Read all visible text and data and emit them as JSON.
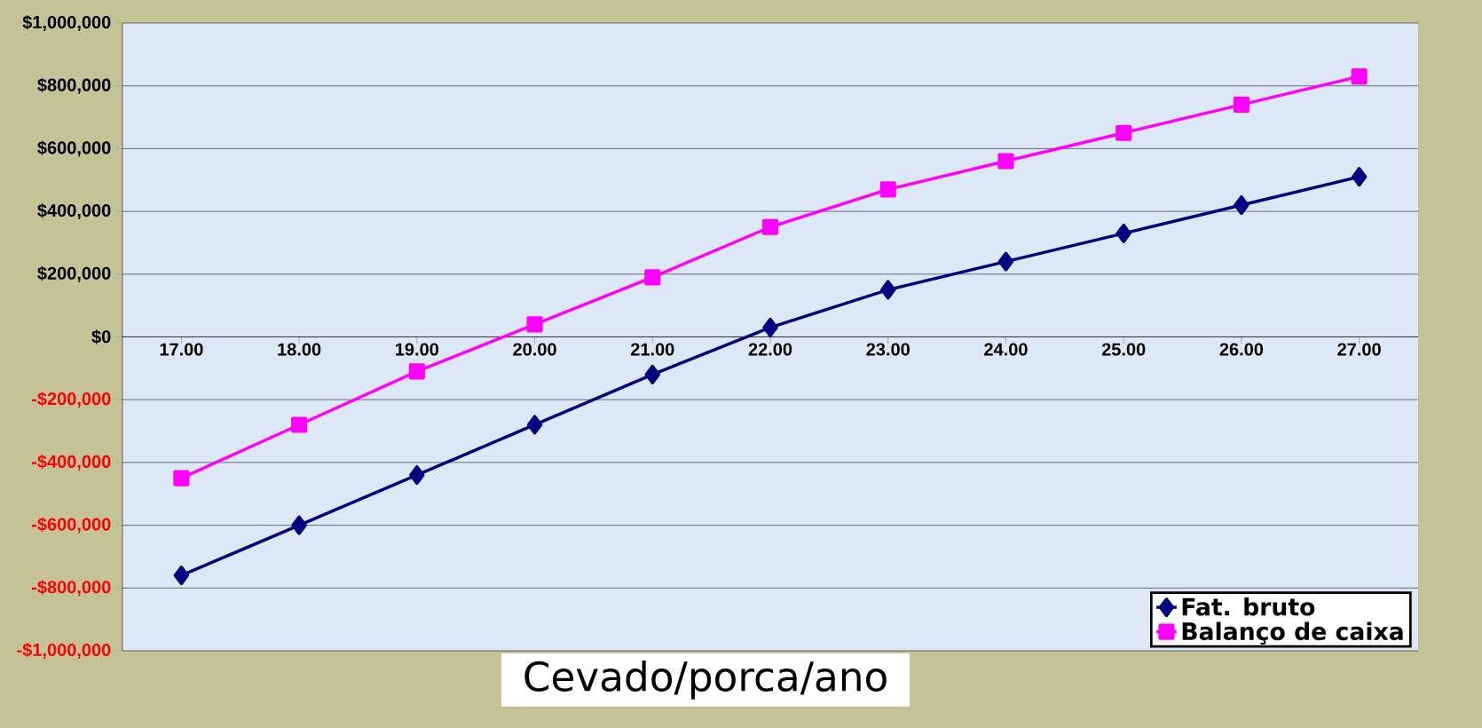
{
  "chart_data": {
    "type": "line",
    "xlabel": "Cevado/porca/ano",
    "categories": [
      "17.00",
      "18.00",
      "19.00",
      "20.00",
      "21.00",
      "22.00",
      "23.00",
      "24.00",
      "25.00",
      "26.00",
      "27.00"
    ],
    "series": [
      {
        "name": "Fat. bruto",
        "color": "#000080",
        "marker": "diamond",
        "values": [
          -760000,
          -600000,
          -440000,
          -280000,
          -120000,
          30000,
          150000,
          240000,
          330000,
          420000,
          510000
        ]
      },
      {
        "name": "Balanço de caixa",
        "color": "#ff00ff",
        "marker": "square",
        "values": [
          -450000,
          -280000,
          -110000,
          40000,
          190000,
          350000,
          470000,
          560000,
          650000,
          740000,
          830000
        ]
      }
    ],
    "ylim": [
      -1000000,
      1000000
    ],
    "yticks": [
      {
        "value": -1000000,
        "label": "-$1,000,000"
      },
      {
        "value": -800000,
        "label": "-$800,000"
      },
      {
        "value": -600000,
        "label": "-$600,000"
      },
      {
        "value": -400000,
        "label": "-$400,000"
      },
      {
        "value": -200000,
        "label": "-$200,000"
      },
      {
        "value": 0,
        "label": "$0"
      },
      {
        "value": 200000,
        "label": "$200,000"
      },
      {
        "value": 400000,
        "label": "$400,000"
      },
      {
        "value": 600000,
        "label": "$600,000"
      },
      {
        "value": 800000,
        "label": "$800,000"
      },
      {
        "value": 1000000,
        "label": "$1,000,000"
      }
    ],
    "grid": "y",
    "legend": "bottom right",
    "line_style": "solid"
  }
}
